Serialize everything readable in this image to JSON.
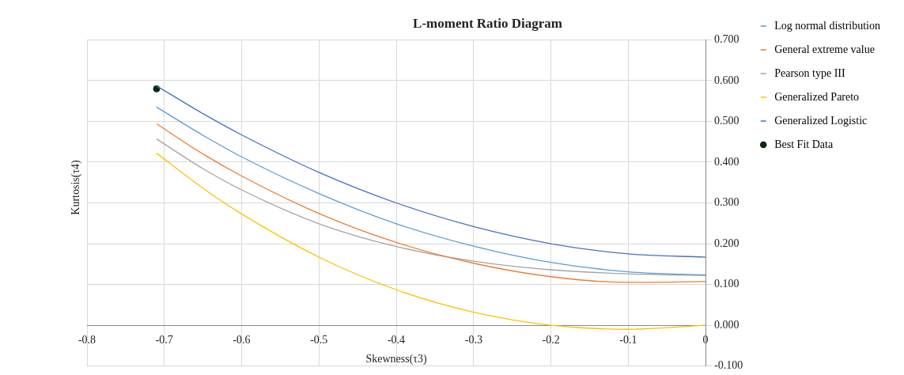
{
  "chart_data": {
    "type": "line",
    "title": "L-moment Ratio Diagram",
    "xlabel": "Skewness(τ3)",
    "ylabel": "Kurtosis(τ4)",
    "xlim": [
      -0.8,
      0
    ],
    "xticks": [
      -0.8,
      -0.7,
      -0.6,
      -0.5,
      -0.4,
      -0.3,
      -0.2,
      -0.1,
      0
    ],
    "ylim": [
      -0.1,
      0.7
    ],
    "yticks": [
      {
        "value": -0.1,
        "label": "-0.100"
      },
      {
        "value": 0,
        "label": "0.000"
      },
      {
        "value": 0.1,
        "label": "0.100"
      },
      {
        "value": 0.2,
        "label": "0.200"
      },
      {
        "value": 0.3,
        "label": "0.300"
      },
      {
        "value": 0.4,
        "label": "0.400"
      },
      {
        "value": 0.5,
        "label": "0.500"
      },
      {
        "value": 0.6,
        "label": "0.600"
      },
      {
        "value": 0.7,
        "label": "0.700"
      }
    ],
    "grid": true,
    "legend": "right",
    "marker": "none",
    "line_style": "solid",
    "x": [
      -0.71,
      -0.65,
      -0.6,
      -0.5,
      -0.4,
      -0.3,
      -0.2,
      -0.1,
      0
    ],
    "series": [
      {
        "name": "Log normal distribution",
        "color": "#5b9bd5",
        "values": [
          0.535,
          0.466,
          0.413,
          0.323,
          0.249,
          0.194,
          0.154,
          0.131,
          0.123
        ]
      },
      {
        "name": "General extreme value",
        "color": "#ed7d31",
        "values": [
          0.494,
          0.42,
          0.366,
          0.274,
          0.203,
          0.152,
          0.119,
          0.105,
          0.107
        ]
      },
      {
        "name": "Pearson type III",
        "color": "#a5a5a5",
        "values": [
          0.457,
          0.384,
          0.332,
          0.249,
          0.193,
          0.157,
          0.136,
          0.126,
          0.122
        ]
      },
      {
        "name": "Generalized Pareto",
        "color": "#ffc000",
        "values": [
          0.422,
          0.336,
          0.273,
          0.167,
          0.087,
          0.032,
          0.0,
          -0.01,
          0.0
        ]
      },
      {
        "name": "Generalized Logistic",
        "color": "#4472c4",
        "values": [
          0.587,
          0.519,
          0.467,
          0.375,
          0.3,
          0.242,
          0.2,
          0.175,
          0.167
        ]
      },
      {
        "name": "Best Fit Data",
        "type": "scatter",
        "marker": "circle",
        "color": "#0b2a10",
        "x": [
          -0.71
        ],
        "values": [
          0.58
        ]
      }
    ]
  }
}
